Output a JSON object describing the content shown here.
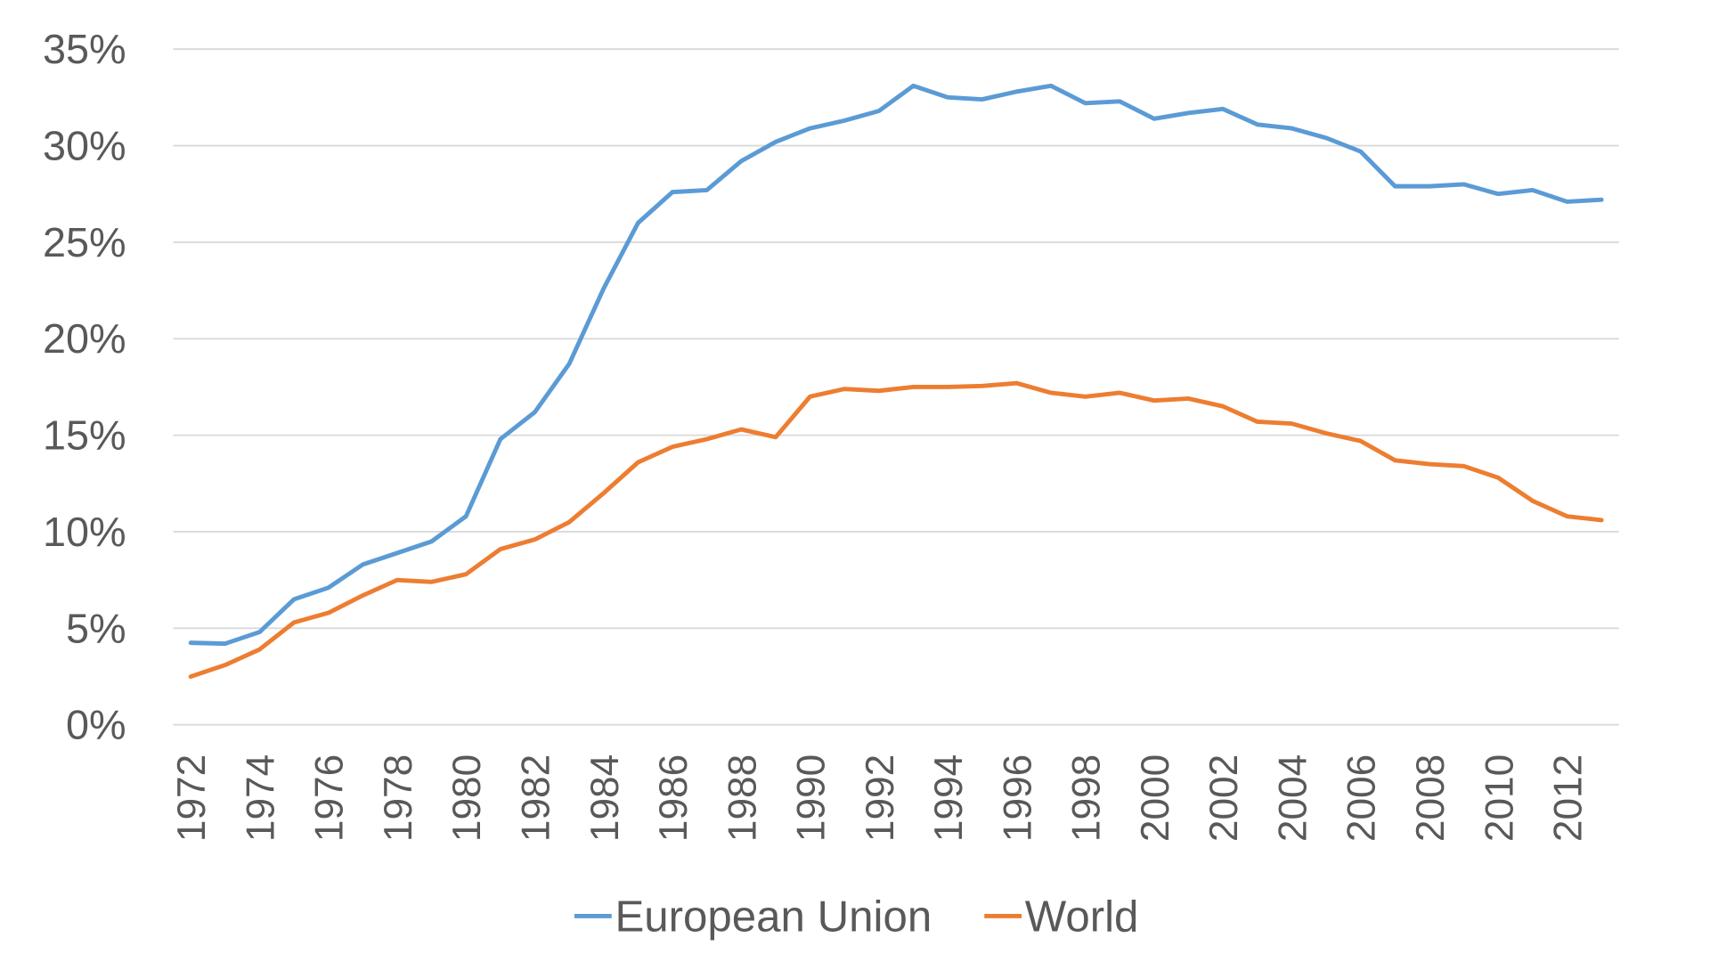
{
  "chart_data": {
    "type": "line",
    "title": "",
    "xlabel": "",
    "ylabel": "",
    "ylim": [
      0,
      35
    ],
    "yticks": [
      "0%",
      "5%",
      "10%",
      "15%",
      "20%",
      "25%",
      "30%",
      "35%"
    ],
    "ytick_values": [
      0,
      5,
      10,
      15,
      20,
      25,
      30,
      35
    ],
    "grid": true,
    "legend_position": "bottom",
    "x": [
      1972,
      1973,
      1974,
      1975,
      1976,
      1977,
      1978,
      1979,
      1980,
      1981,
      1982,
      1983,
      1984,
      1985,
      1986,
      1987,
      1988,
      1989,
      1990,
      1991,
      1992,
      1993,
      1994,
      1995,
      1996,
      1997,
      1998,
      1999,
      2000,
      2001,
      2002,
      2003,
      2004,
      2005,
      2006,
      2007,
      2008,
      2009,
      2010,
      2011,
      2012,
      2013
    ],
    "xtick_labels": [
      "1972",
      "1974",
      "1976",
      "1978",
      "1980",
      "1982",
      "1984",
      "1986",
      "1988",
      "1990",
      "1992",
      "1994",
      "1996",
      "1998",
      "2000",
      "2002",
      "2004",
      "2006",
      "2008",
      "2010",
      "2012"
    ],
    "series": [
      {
        "name": "European Union",
        "color": "#5B9BD5",
        "values": [
          4.25,
          4.2,
          4.8,
          6.5,
          7.1,
          8.3,
          8.9,
          9.5,
          10.8,
          14.8,
          16.2,
          18.7,
          22.6,
          26.0,
          27.6,
          27.7,
          29.2,
          30.2,
          30.9,
          31.3,
          31.8,
          33.1,
          32.5,
          32.4,
          32.8,
          33.1,
          32.2,
          32.3,
          31.4,
          31.7,
          31.9,
          31.1,
          30.9,
          30.4,
          29.7,
          27.9,
          27.9,
          28.0,
          27.5,
          27.7,
          27.1,
          27.2
        ]
      },
      {
        "name": "World",
        "color": "#ED7D31",
        "values": [
          2.5,
          3.1,
          3.9,
          5.3,
          5.8,
          6.7,
          7.5,
          7.4,
          7.8,
          9.1,
          9.6,
          10.5,
          12.0,
          13.6,
          14.4,
          14.8,
          15.3,
          14.9,
          17.0,
          17.4,
          17.3,
          17.5,
          17.5,
          17.55,
          17.7,
          17.2,
          17.0,
          17.2,
          16.8,
          16.9,
          16.5,
          15.7,
          15.6,
          15.1,
          14.7,
          13.7,
          13.5,
          13.4,
          12.8,
          11.6,
          10.8,
          10.6
        ]
      }
    ]
  }
}
